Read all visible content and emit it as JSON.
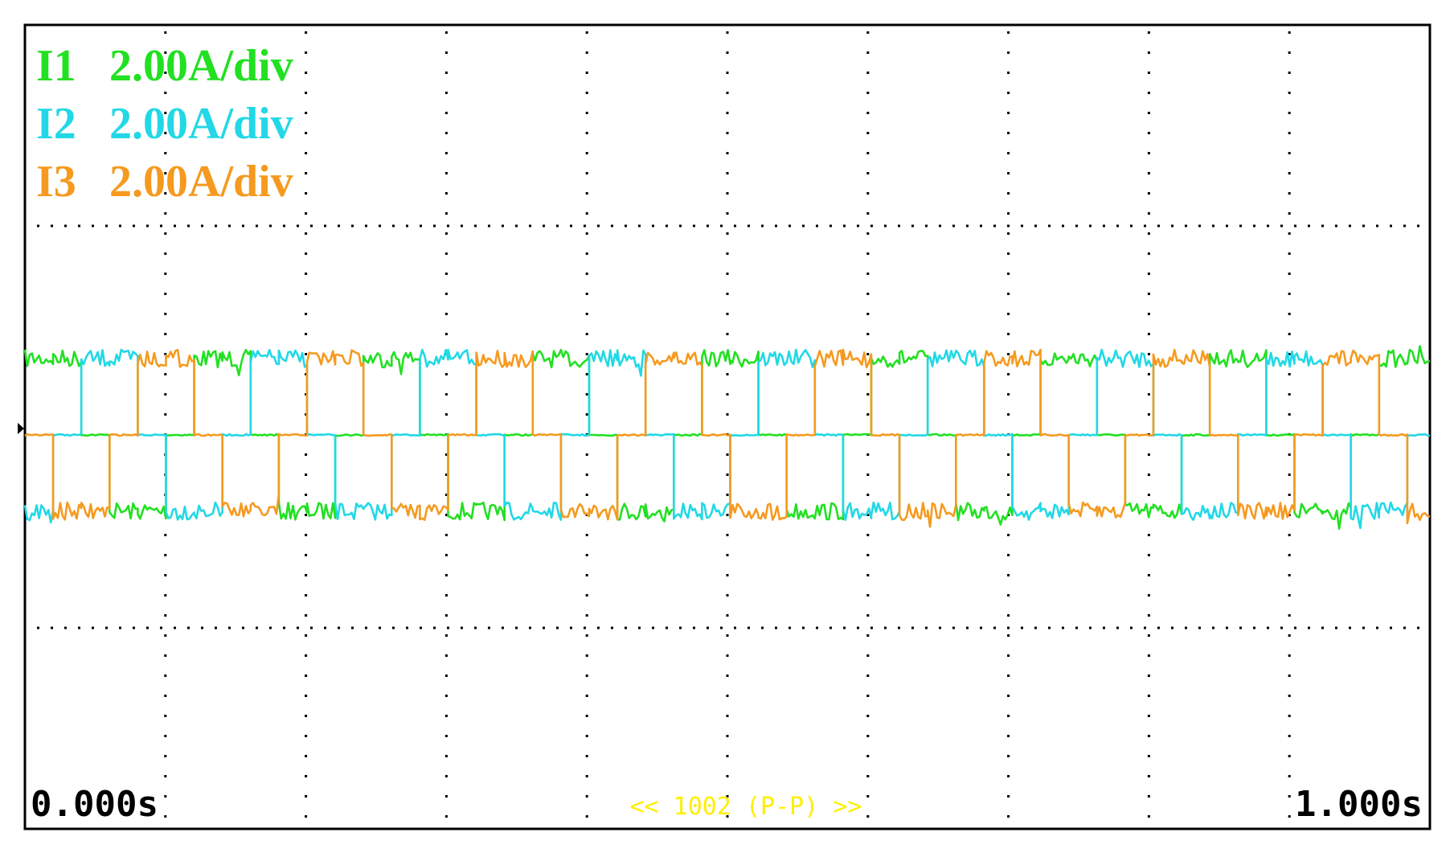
{
  "chart_data": {
    "type": "line",
    "title": "",
    "x_unit": "s",
    "x_range": [
      0.0,
      1.0
    ],
    "y_unit": "A",
    "volts_per_div_note": "",
    "grid": true,
    "grid_divisions": {
      "x": 10,
      "y": 8
    },
    "legend_position": "top-left",
    "series": [
      {
        "name": "I1",
        "scale": "2.00A/div",
        "color": "#22e022",
        "amplitude_div": 1.0,
        "pattern": "six-step",
        "phase_offset_steps": 0
      },
      {
        "name": "I2",
        "scale": "2.00A/div",
        "color": "#22d8e6",
        "amplitude_div": 1.0,
        "pattern": "six-step",
        "phase_offset_steps": 2
      },
      {
        "name": "I3",
        "scale": "2.00A/div",
        "color": "#f59a1f",
        "amplitude_div": 1.0,
        "pattern": "six-step",
        "phase_offset_steps": 4
      }
    ],
    "cycles_shown": 8.3,
    "time_start_label": "0.000s",
    "time_end_label": "1.000s",
    "record_count_label": "<< 1002 (P-P) >>"
  }
}
